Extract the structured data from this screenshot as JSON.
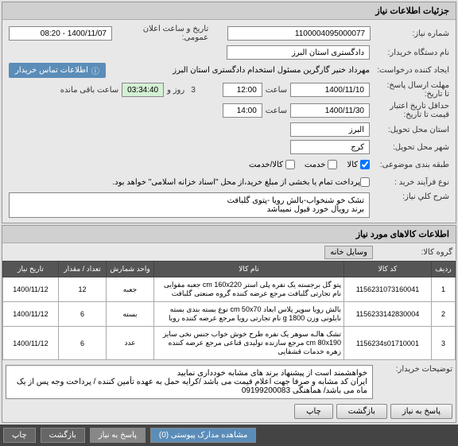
{
  "header": {
    "title": "جزئیات اطلاعات نیاز"
  },
  "form": {
    "need_no_label": "شماره نیاز:",
    "need_no": "1100004095000077",
    "announce_label": "تاریخ و ساعت اعلان عمومی:",
    "announce": "1400/11/07 - 08:20",
    "buyer_label": "نام دستگاه خریدار:",
    "buyer": "دادگستری استان البرز",
    "requester_label": "ایجاد کننده درخواست:",
    "requester": "مهرداد خنیر گارگرین مسئول استخدام دادگستری استان البرز",
    "contact_label": "اطلاعات تماس خریدار",
    "deadline_label": "مهلت ارسال پاسخ:",
    "date_label": "تا تاریخ:",
    "date1": "1400/11/10",
    "time_label": "ساعت",
    "time1": "12:00",
    "day_label": "روز و",
    "day_val": "3",
    "remain": "03:34:40",
    "remain_label": "ساعت باقی مانده",
    "valid_label": "حداقل تاریخ اعتبار",
    "valid_label2": "قیمت تا تاریخ:",
    "date2": "1400/11/30",
    "time2": "14:00",
    "province_label": "استان محل تحویل:",
    "province": "البرز",
    "city_label": "شهر محل تحویل:",
    "city": "کرج",
    "subject_label": "طبقه بندی موضوعی:",
    "chk_kala": "کالا",
    "chk_khadmat": "خدمت",
    "chk_kalakh": "کالا/خدمت",
    "process_label": "نوع فرآیند خرید :",
    "process_text": "پرداخت تمام یا بخشی از مبلغ خرید،از محل \"اسناد خزانه اسلامی\" خواهد بود.",
    "desc_label": "شرح کلي نیاز:",
    "desc": "تشک خو شنخواب-بالش رویا -پتوی گلبافت\nبرند رویال خورد قبول نمیباشد"
  },
  "goods_header": "اطلاعات کالاهای مورد نیاز",
  "group_label": "گروه کالا:",
  "group_value": "وسایل خانه",
  "table": {
    "cols": [
      "ردیف",
      "کد کالا",
      "نام کالا",
      "واحد شمارش",
      "تعداد / مقدار",
      "تاریخ نیاز"
    ],
    "rows": [
      [
        "1",
        "1156231073160041",
        "پتو گل برجسته یک نفره پلی استر cm 160x220 جعبه مقوایی نام تجارتی گلبافت مرجع عرضه کننده گروه صنعتی گلبافت",
        "جعبه",
        "12",
        "1400/11/12"
      ],
      [
        "2",
        "1156233142830004",
        "بالش رویا سوپر پلاس ابعاد cm 50x70 نوع بسته بندی بسته نایلونی وزن g 1800 نام تجارتی رویا مرجع عرضه کننده رویا",
        "بسته",
        "6",
        "1400/11/12"
      ],
      [
        "3",
        "1156234s01710001",
        "تشک هالـه سوهر یک نفره طرح خوش خواب جنس نخی سایز cm 80x190 مرجع سازنده تولیدی قناعی مرجع عرضه کننده زهره خدمات قشقایی",
        "عدد",
        "6",
        "1400/11/12"
      ]
    ]
  },
  "remarks_label": "توضیحات خریدار:",
  "remarks": "خواهشمند است از پیشنهاد برند های مشابه خودداری نمایید\nایران کد مشابه و صرفا جهت اعلام قیمت می باشد /کرایه حمل به عهده تأمین کننده / پرداخت وجه پس از یک ماه می باشد/ هماهنگی 09199200083",
  "buttons": {
    "reply": "پاسخ به نیاز",
    "back": "بازگشت",
    "print": "چاپ"
  },
  "bottom": {
    "attach": "مشاهده مدارک پیوستی (0)",
    "reply_b": "پاسخ به نیاز",
    "back_b": "بازگشت",
    "print_b": "چاپ"
  }
}
